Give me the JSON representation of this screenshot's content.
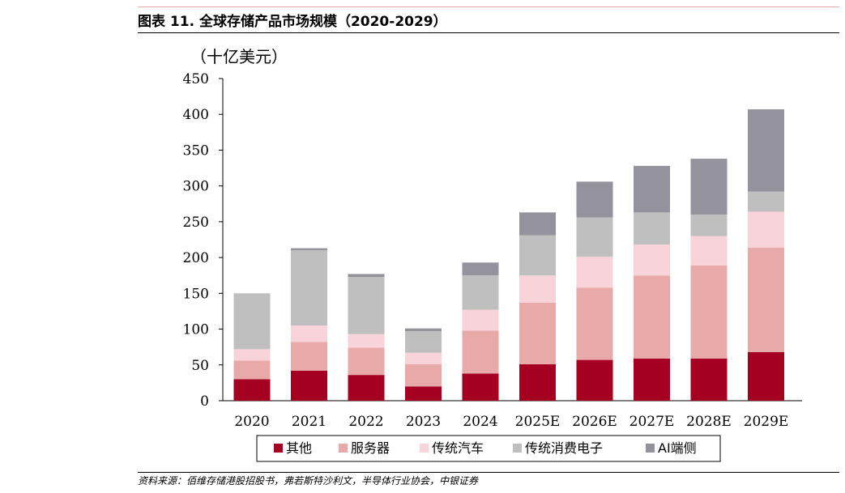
{
  "figure_title": "图表 11. 全球存储产品市场规模（2020-2029）",
  "source_note": "资料来源：佰维存储港股招股书，弗若斯特沙利文，半导体行业协会，中银证券",
  "chart_data": {
    "type": "bar",
    "stacked": true,
    "unit_label": "（十亿美元）",
    "categories": [
      "2020",
      "2021",
      "2022",
      "2023",
      "2024",
      "2025E",
      "2026E",
      "2027E",
      "2028E",
      "2029E"
    ],
    "yticks": [
      "0",
      "50",
      "100",
      "150",
      "200",
      "250",
      "300",
      "350",
      "400",
      "450"
    ],
    "ylim": [
      0,
      450
    ],
    "grid": false,
    "legend_position": "bottom",
    "series": [
      {
        "name": "其他",
        "color": "#a50021",
        "values": [
          30,
          42,
          36,
          20,
          38,
          51,
          57,
          59,
          59,
          68
        ]
      },
      {
        "name": "服务器",
        "color": "#e8aaa9",
        "values": [
          26,
          40,
          38,
          31,
          60,
          86,
          101,
          116,
          130,
          146
        ]
      },
      {
        "name": "传统汽车",
        "color": "#f8d3d9",
        "values": [
          16,
          23,
          19,
          16,
          29,
          38,
          43,
          43,
          41,
          50
        ]
      },
      {
        "name": "传统消费电子",
        "color": "#c0bfbf",
        "values": [
          78,
          105,
          80,
          30,
          48,
          56,
          55,
          45,
          30,
          28
        ]
      },
      {
        "name": "AI端侧",
        "color": "#93929d",
        "values": [
          0,
          3,
          4,
          4,
          18,
          32,
          50,
          65,
          78,
          115
        ]
      }
    ]
  }
}
